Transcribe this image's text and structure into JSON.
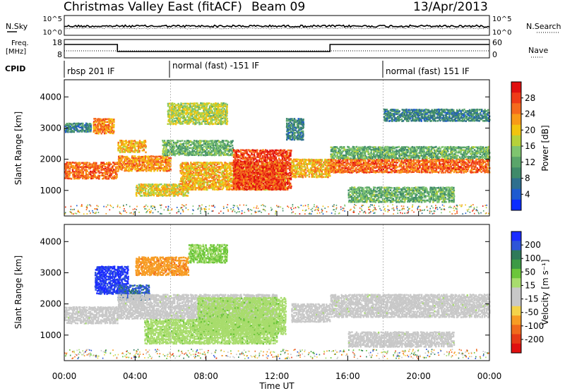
{
  "header": {
    "title": "Christmas Valley East (fitACF)",
    "beam": "Beam 09",
    "date": "13/Apr/2013"
  },
  "top_panels": {
    "nsky_label": "N.Sky",
    "nsky_ticks": [
      "10^5",
      "10^0"
    ],
    "nsearch_label": "N.Search",
    "nsearch_ticks": [
      "10^5",
      "10^0"
    ],
    "freq_label_line1": "Freq.",
    "freq_label_line2": "[MHz]",
    "freq_ticks": [
      "18",
      "8"
    ],
    "nave_label": "Nave",
    "nave_ticks": [
      "60",
      "0"
    ],
    "cpid_label": "CPID",
    "cpid_segments": [
      "rbsp 201 IF",
      "normal (fast) -151 IF",
      "normal (fast) 151 IF"
    ]
  },
  "colors": {
    "power": [
      "#0a2cff",
      "#1e5bd0",
      "#2e6f8e",
      "#3f8a6a",
      "#5aa56a",
      "#7fc46f",
      "#b6d13a",
      "#f2c40f",
      "#f89a18",
      "#f56a1d",
      "#ef3b18",
      "#e01010"
    ],
    "velocity": [
      "#1a2bff",
      "#2e55d8",
      "#2f7a5a",
      "#3d9a45",
      "#6cc63a",
      "#a8dc6d",
      "#c8c8c8",
      "#c8c8c8",
      "#f4d34a",
      "#f79c24",
      "#f06a1c",
      "#e63a16",
      "#e01010"
    ]
  },
  "chart_data": [
    {
      "type": "heatmap",
      "name": "Power",
      "xlabel": "",
      "ylabel": "Slant Range [km]",
      "x_ticks": [
        "00:00",
        "04:00",
        "08:00",
        "12:00",
        "16:00",
        "20:00",
        "00:00"
      ],
      "xlim": [
        0,
        24
      ],
      "y_ticks": [
        "1000",
        "2000",
        "3000",
        "4000"
      ],
      "ylim": [
        180,
        4550
      ],
      "colorbar_label": "Power [dB]",
      "colorbar_ticks": [
        "28",
        "24",
        "20",
        "16",
        "12",
        "8",
        "4"
      ],
      "colorbar_range": [
        0,
        30
      ],
      "blobs": [
        {
          "t0": 0.0,
          "t1": 3.0,
          "r0": 1350,
          "r1": 1900,
          "level": 24
        },
        {
          "t0": 0.0,
          "t1": 1.5,
          "r0": 2850,
          "r1": 3150,
          "level": 8
        },
        {
          "t0": 1.6,
          "t1": 2.8,
          "r0": 2800,
          "r1": 3300,
          "level": 22
        },
        {
          "t0": 3.0,
          "t1": 4.6,
          "r0": 2200,
          "r1": 2600,
          "level": 20
        },
        {
          "t0": 3.0,
          "t1": 6.0,
          "r0": 1600,
          "r1": 2100,
          "level": 22
        },
        {
          "t0": 4.0,
          "t1": 7.0,
          "r0": 800,
          "r1": 1200,
          "level": 18
        },
        {
          "t0": 5.5,
          "t1": 9.5,
          "r0": 2100,
          "r1": 2600,
          "level": 12
        },
        {
          "t0": 5.8,
          "t1": 9.2,
          "r0": 3100,
          "r1": 3800,
          "level": 16
        },
        {
          "t0": 6.5,
          "t1": 12.5,
          "r0": 1000,
          "r1": 1900,
          "level": 20
        },
        {
          "t0": 9.5,
          "t1": 12.8,
          "r0": 1000,
          "r1": 2300,
          "level": 26
        },
        {
          "t0": 12.8,
          "t1": 15.0,
          "r0": 1400,
          "r1": 2000,
          "level": 20
        },
        {
          "t0": 12.5,
          "t1": 13.5,
          "r0": 2600,
          "r1": 3300,
          "level": 8
        },
        {
          "t0": 15.0,
          "t1": 24.0,
          "r0": 1550,
          "r1": 2000,
          "level": 24
        },
        {
          "t0": 15.0,
          "t1": 24.0,
          "r0": 2000,
          "r1": 2400,
          "level": 12
        },
        {
          "t0": 16.0,
          "t1": 22.0,
          "r0": 600,
          "r1": 1100,
          "level": 12
        },
        {
          "t0": 18.0,
          "t1": 24.0,
          "r0": 3200,
          "r1": 3600,
          "level": 8
        }
      ]
    },
    {
      "type": "heatmap",
      "name": "Velocity",
      "xlabel": "Time UT",
      "ylabel": "Slant Range [km]",
      "x_ticks": [
        "00:00",
        "04:00",
        "08:00",
        "12:00",
        "16:00",
        "20:00",
        "00:00"
      ],
      "xlim": [
        0,
        24
      ],
      "y_ticks": [
        "1000",
        "2000",
        "3000",
        "4000"
      ],
      "ylim": [
        180,
        4550
      ],
      "colorbar_label": "Velocity [m s⁻¹]",
      "colorbar_ticks": [
        "200",
        "100",
        "50",
        "15",
        "-15",
        "-50",
        "-100",
        "-200"
      ],
      "colorbar_range": [
        -250,
        250
      ],
      "blobs": [
        {
          "t0": 0.0,
          "t1": 3.0,
          "r0": 1350,
          "r1": 1900,
          "level": 0
        },
        {
          "t0": 1.7,
          "t1": 3.6,
          "r0": 2300,
          "r1": 3200,
          "level": 220
        },
        {
          "t0": 3.0,
          "t1": 4.8,
          "r0": 2100,
          "r1": 2600,
          "level": 180
        },
        {
          "t0": 4.0,
          "t1": 7.0,
          "r0": 2900,
          "r1": 3500,
          "level": -120
        },
        {
          "t0": 7.0,
          "t1": 9.2,
          "r0": 3300,
          "r1": 3900,
          "level": 60
        },
        {
          "t0": 3.0,
          "t1": 12.0,
          "r0": 1500,
          "r1": 2300,
          "level": 0
        },
        {
          "t0": 4.5,
          "t1": 12.0,
          "r0": 700,
          "r1": 1500,
          "level": 40
        },
        {
          "t0": 7.5,
          "t1": 12.5,
          "r0": 1000,
          "r1": 2200,
          "level": 40
        },
        {
          "t0": 12.8,
          "t1": 15.0,
          "r0": 1400,
          "r1": 2000,
          "level": 0
        },
        {
          "t0": 15.0,
          "t1": 24.0,
          "r0": 1550,
          "r1": 2300,
          "level": 0
        },
        {
          "t0": 16.0,
          "t1": 22.0,
          "r0": 600,
          "r1": 1100,
          "level": 0
        }
      ]
    }
  ]
}
